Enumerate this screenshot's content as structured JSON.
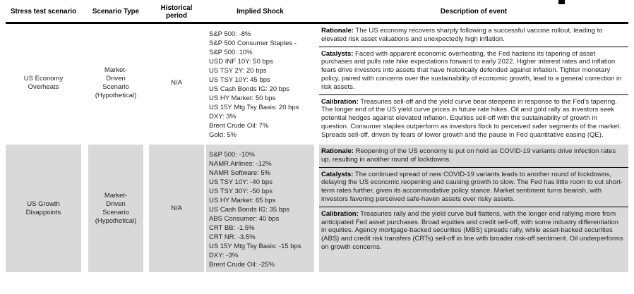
{
  "page": {
    "corner_mark": "black-rect-artifact"
  },
  "colors": {
    "alt_row_bg": "#d9d9d9",
    "rule": "#000000",
    "text": "#1f1f1f"
  },
  "table": {
    "headers": [
      "Stress test scenario",
      "Scenario Type",
      "Historical period",
      "Implied Shock",
      "Description of event"
    ],
    "rows": [
      {
        "scenario": "US Economy Overheats",
        "type": "Market-Driven Scenario (Hypothetical)",
        "period": "N/A",
        "shocks": [
          "S&P 500: -8%",
          "S&P 500 Consumer Staples -",
          "S&P 500: 10%",
          "USD INF 10Y: 50 bps",
          "US TSY 2Y: 20 bps",
          "US TSY 10Y: 45 bps",
          "US Cash Bonds IG: 20 bps",
          "US HY Market: 50 bps",
          "US 15Y Mtg Tsy Basis: 20 bps",
          "DXY: 3%",
          "Brent Crude Oil: 7%",
          "Gold: 5%"
        ],
        "sections": [
          {
            "label": "Rationale:",
            "text": " The US economy recovers sharply following a successful vaccine rollout, leading to elevated risk asset valuations and unexpectedly high inflation."
          },
          {
            "label": "Catalysts:",
            "text": " Faced with apparent economic overheating, the Fed hastens its tapering of asset purchases and pulls rate hike expectations forward to early 2022. Higher interest rates and inflation fears drive investors into assets that have historically defended against inflation. Tighter monetary policy, paired with concerns over the sustainability of economic growth, lead to a general correction in risk assets."
          },
          {
            "label": "Calibration:",
            "text": " Treasuries sell-off and the yield curve bear steepens in response to the Fed's tapering. The longer end of the US yield curve prices in future rate hikes. Oil and gold rally as investors seek potential hedges against elevated inflation. Equities sell-off with the sustainability of growth in question. Consumer staples outperform as investors flock to perceived safer segments of the market. Spreads sell-off, driven by fears of lower growth and the pause in Fed quantitative easing (QE)."
          }
        ]
      },
      {
        "scenario": "US Growth Disappoints",
        "type": "Market-Driven Scenario (Hypothetical)",
        "period": "N/A",
        "shocks": [
          "S&P 500: -10%",
          "NAMR Airlines: -12%",
          "NAMR Software: 5%",
          "US TSY 10Y: -40 bps",
          "US TSY 30Y: -50 bps",
          "US HY Market: 65 bps",
          "US Cash Bonds IG: 35 bps",
          "ABS Consumer: 40 bps",
          "CRT BB: -1.5%",
          "CRT NR: -3.5%",
          "US 15Y Mtg Tsy Basis: -15 bps",
          "DXY: -3%",
          "Brent Crude Oil: -25%"
        ],
        "sections": [
          {
            "label": "Rationale:",
            "text": " Reopening of the US economy is put on hold as COVID-19 variants drive infection rates up, resulting in another round of lockdowns."
          },
          {
            "label": "Catalysts:",
            "text": " The continued spread of new COVID-19 variants leads to another round of lockdowns, delaying the US economic reopening and causing growth to slow. The Fed has little room to cut short-term rates further, given its accommodative policy stance. Market sentiment turns bearish, with investors favoring perceived safe-haven assets over risky assets."
          },
          {
            "label": "Calibration:",
            "text": " Treasuries rally and the yield curve bull flattens, with the longer end rallying more from anticipated Fed asset purchases. Broad equities and credit sell-off, with some industry differentiation in equities. Agency mortgage-backed securities (MBS) spreads rally, while asset-backed securities (ABS) and credit risk transfers (CRTs) sell-off in line with broader risk-off sentiment. Oil underperforms on growth concerns."
          }
        ]
      }
    ]
  }
}
